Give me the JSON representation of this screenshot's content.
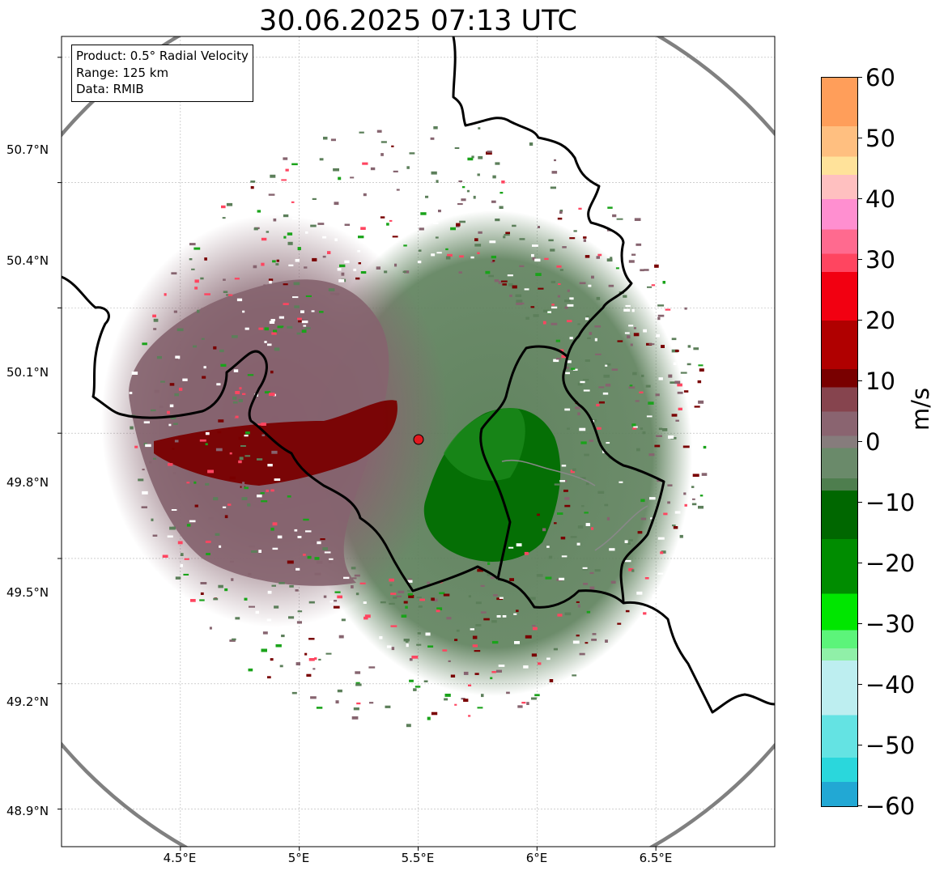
{
  "title": "30.06.2025 07:13 UTC",
  "info_box": {
    "product": "Product: 0.5° Radial Velocity",
    "range": "Range: 125 km",
    "data": "Data: RMIB"
  },
  "axes": {
    "lon_range": [
      4.0,
      7.0
    ],
    "lat_range": [
      48.81,
      50.75
    ],
    "x_ticks": [
      "4.5°E",
      "5°E",
      "5.5°E",
      "6°E",
      "6.5°E"
    ],
    "y_ticks": [
      "50.7°N",
      "50.4°N",
      "50.1°N",
      "49.8°N",
      "49.5°N",
      "49.2°N",
      "48.9°N"
    ],
    "grid": true
  },
  "radar": {
    "site_lon": 5.5,
    "site_lat": 49.91,
    "range_km": 125,
    "site_marker_color": "#e0191f",
    "range_ring_color": "#808080"
  },
  "echo_colors": {
    "approaching_strong": "#007a00",
    "approaching_weak": "#5c7f5a",
    "receding_weak": "#866a74",
    "receding_strong": "#820000"
  },
  "colorbar": {
    "label": "m/s",
    "min": -60,
    "max": 60,
    "ticks": [
      "60",
      "50",
      "40",
      "30",
      "20",
      "10",
      "0",
      "−10",
      "−20",
      "−30",
      "−40",
      "−50",
      "−60"
    ],
    "stops": [
      {
        "value": 60,
        "color": "#ff9e5a"
      },
      {
        "value": 52,
        "color": "#ffbf80"
      },
      {
        "value": 47,
        "color": "#ffe29a"
      },
      {
        "value": 44,
        "color": "#ffc0c0"
      },
      {
        "value": 40,
        "color": "#ff8fd0"
      },
      {
        "value": 35,
        "color": "#ff6a8f"
      },
      {
        "value": 31,
        "color": "#ff4560"
      },
      {
        "value": 28,
        "color": "#f20011"
      },
      {
        "value": 20,
        "color": "#b00000"
      },
      {
        "value": 12,
        "color": "#790000"
      },
      {
        "value": 9,
        "color": "#86444e"
      },
      {
        "value": 5,
        "color": "#8a6470"
      },
      {
        "value": 1,
        "color": "#867c7c"
      },
      {
        "value": -1,
        "color": "#6a8a6a"
      },
      {
        "value": -6,
        "color": "#4e7e4e"
      },
      {
        "value": -8,
        "color": "#006700"
      },
      {
        "value": -16,
        "color": "#008c00"
      },
      {
        "value": -25,
        "color": "#00e600"
      },
      {
        "value": -31,
        "color": "#5cf47a"
      },
      {
        "value": -34,
        "color": "#90f0a8"
      },
      {
        "value": -36,
        "color": "#bdeef0"
      },
      {
        "value": -45,
        "color": "#64e3e3"
      },
      {
        "value": -52,
        "color": "#2ad7dc"
      },
      {
        "value": -56,
        "color": "#22a8d4"
      },
      {
        "value": -60,
        "color": "#1f7fc8"
      }
    ]
  }
}
